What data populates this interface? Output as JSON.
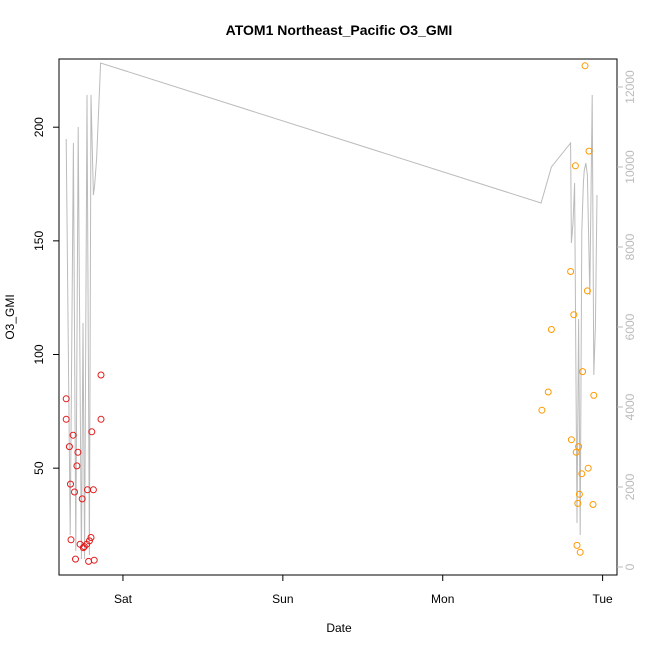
{
  "chart_data": {
    "type": "scatter",
    "title": "ATOM1 Northeast_Pacific O3_GMI",
    "xlabel": "Date",
    "ylabel": "O3_GMI",
    "x_unit": "days",
    "x_ticks": [
      {
        "value": 1.0,
        "label": "Sat"
      },
      {
        "value": 2.0,
        "label": "Sun"
      },
      {
        "value": 3.0,
        "label": "Mon"
      },
      {
        "value": 4.0,
        "label": "Tue"
      }
    ],
    "xlim": [
      0.6,
      4.09
    ],
    "ylim": [
      3,
      230
    ],
    "y_ticks": [
      50,
      100,
      150,
      200
    ],
    "y2lim": [
      -200,
      12700
    ],
    "y2_ticks": [
      0,
      2000,
      4000,
      6000,
      8000,
      10000,
      12000
    ],
    "grid": false,
    "legend": "none",
    "colors": {
      "series_1": "#e31a1c",
      "series_2": "#ff9900",
      "altitude_line": "#bbbbbb",
      "frame": "#000000"
    },
    "series": [
      {
        "x": [
          0.645,
          0.665,
          0.672,
          0.675,
          0.688,
          0.697,
          0.703,
          0.712,
          0.718,
          0.732,
          0.745,
          0.752,
          0.758,
          0.773,
          0.778,
          0.785,
          0.79,
          0.8,
          0.805,
          0.815,
          0.82,
          0.863
        ],
        "y": [
          80.5,
          59.5,
          43.0,
          18.5,
          64.5,
          39.5,
          10.0,
          51.0,
          57.0,
          16.5,
          36.5,
          15.0,
          15.5,
          16.5,
          40.5,
          9.0,
          18.0,
          19.5,
          66.0,
          40.5,
          9.5,
          71.5
        ]
      },
      {
        "x": [
          0.645,
          0.863
        ],
        "y": [
          71.5,
          91.0
        ]
      },
      {
        "x": [
          3.62,
          3.66,
          3.68,
          3.8,
          3.805,
          3.82,
          3.83,
          3.835,
          3.84,
          3.845,
          3.85,
          3.855,
          3.86,
          3.87,
          3.875,
          3.89,
          3.905,
          3.91,
          3.915,
          3.94,
          3.945
        ],
        "y": [
          75.5,
          83.5,
          111.0,
          136.5,
          62.5,
          117.5,
          183.0,
          57.0,
          16.0,
          34.5,
          59.5,
          38.5,
          13.0,
          47.5,
          92.5,
          227.0,
          128.0,
          50.0,
          189.5,
          34.0,
          82.0
        ]
      }
    ],
    "altitude_line": {
      "x": [
        0.645,
        0.67,
        0.69,
        0.705,
        0.72,
        0.74,
        0.75,
        0.76,
        0.775,
        0.79,
        0.8,
        0.815,
        0.822,
        0.835,
        0.86,
        3.615,
        3.68,
        3.8,
        3.805,
        3.815,
        3.825,
        3.84,
        3.85,
        3.86,
        3.87,
        3.88,
        3.885,
        3.89,
        3.895,
        3.905,
        3.92,
        3.935,
        3.945,
        3.955,
        3.965
      ],
      "y": [
        10700,
        800,
        10600,
        400,
        11000,
        200,
        6100,
        200,
        11800,
        300,
        11800,
        9300,
        9500,
        10200,
        12600,
        9100,
        10000,
        10600,
        8100,
        8600,
        9600,
        1100,
        6200,
        800,
        8400,
        9600,
        9900,
        10000,
        10100,
        9800,
        6800,
        11800,
        4800,
        6000,
        9300
      ]
    }
  }
}
